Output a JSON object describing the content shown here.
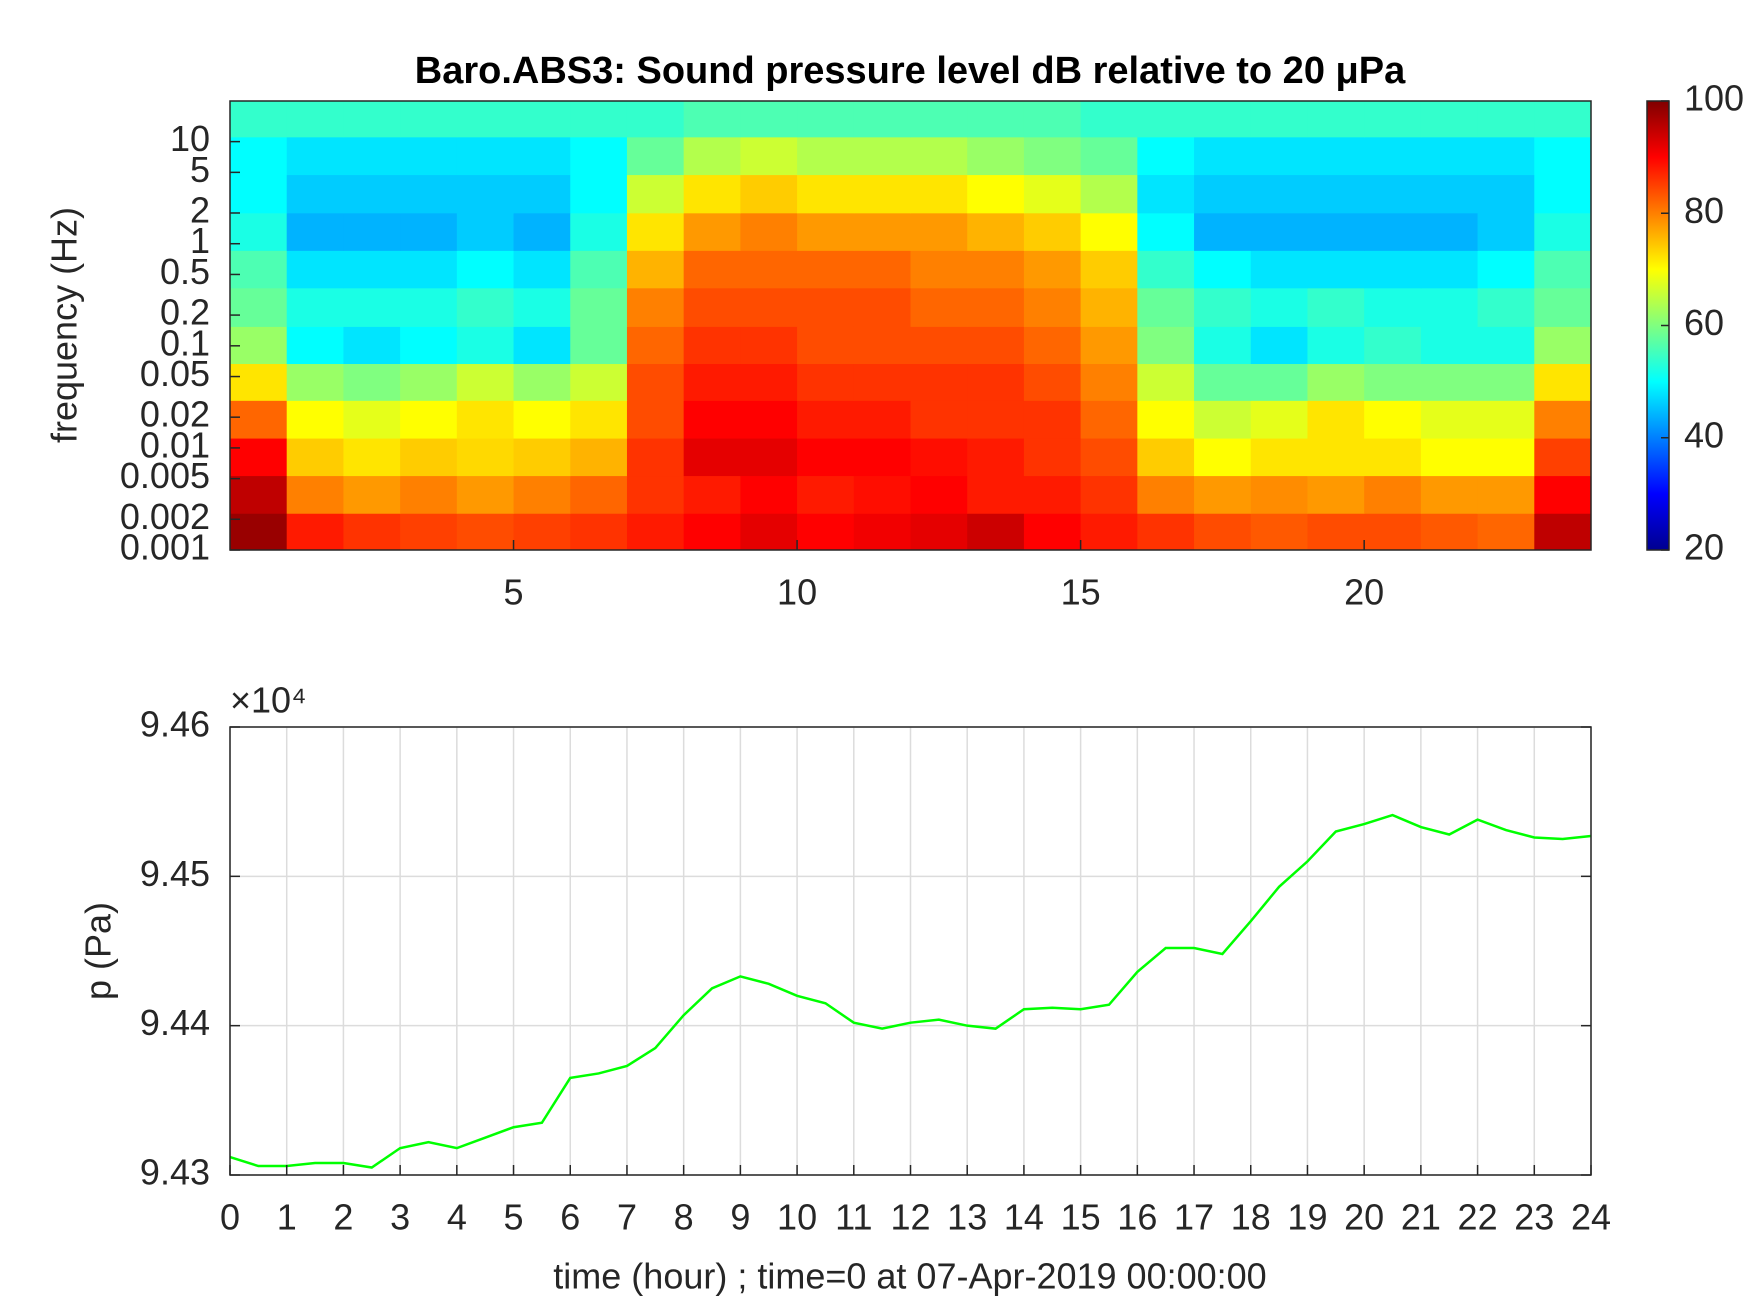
{
  "chart_data": [
    {
      "type": "heatmap",
      "title": "Baro.ABS3: Sound pressure level dB relative to 20 μPa",
      "y_label": "frequency (Hz)",
      "colormap": "jet",
      "x": [
        0.5,
        1.5,
        2.5,
        3.5,
        4.5,
        5.5,
        6.5,
        7.5,
        8.5,
        9.5,
        10.5,
        11.5,
        12.5,
        13.5,
        14.5,
        15.5,
        16.5,
        17.5,
        18.5,
        19.5,
        20.5,
        21.5,
        22.5,
        23.5
      ],
      "y": [
        0.0015,
        0.0035,
        0.0082,
        0.019,
        0.045,
        0.1,
        0.24,
        0.57,
        1.3,
        3.1,
        7.3,
        17
      ],
      "z": [
        [
          98,
          88,
          86,
          85,
          84,
          85,
          86,
          88,
          90,
          92,
          90,
          91,
          92,
          94,
          90,
          88,
          86,
          84,
          83,
          84,
          84,
          83,
          82,
          95
        ],
        [
          95,
          80,
          78,
          80,
          78,
          80,
          82,
          86,
          88,
          90,
          88,
          89,
          90,
          88,
          88,
          86,
          80,
          78,
          79,
          78,
          80,
          78,
          78,
          90
        ],
        [
          90,
          74,
          72,
          74,
          73,
          74,
          76,
          86,
          92,
          92,
          90,
          90,
          89,
          88,
          86,
          84,
          74,
          70,
          72,
          72,
          72,
          70,
          70,
          85
        ],
        [
          82,
          70,
          68,
          70,
          72,
          70,
          72,
          84,
          90,
          90,
          88,
          88,
          86,
          86,
          86,
          82,
          70,
          66,
          68,
          72,
          70,
          68,
          68,
          80
        ],
        [
          72,
          62,
          60,
          62,
          66,
          62,
          66,
          84,
          88,
          88,
          86,
          86,
          86,
          86,
          84,
          80,
          66,
          58,
          58,
          62,
          60,
          60,
          60,
          72
        ],
        [
          62,
          50,
          48,
          50,
          52,
          48,
          58,
          82,
          86,
          86,
          84,
          84,
          84,
          84,
          82,
          78,
          60,
          52,
          48,
          52,
          54,
          52,
          52,
          62
        ],
        [
          58,
          52,
          52,
          52,
          54,
          52,
          58,
          80,
          84,
          84,
          84,
          84,
          82,
          82,
          80,
          76,
          58,
          54,
          52,
          54,
          52,
          52,
          54,
          58
        ],
        [
          56,
          48,
          48,
          48,
          50,
          48,
          56,
          76,
          82,
          82,
          82,
          82,
          80,
          80,
          78,
          74,
          54,
          50,
          48,
          48,
          48,
          48,
          50,
          56
        ],
        [
          52,
          44,
          44,
          44,
          46,
          44,
          52,
          72,
          78,
          80,
          78,
          78,
          78,
          76,
          74,
          70,
          50,
          44,
          44,
          44,
          44,
          44,
          46,
          52
        ],
        [
          50,
          46,
          46,
          46,
          46,
          46,
          50,
          66,
          72,
          74,
          72,
          72,
          72,
          70,
          68,
          64,
          48,
          46,
          46,
          46,
          46,
          46,
          46,
          50
        ],
        [
          50,
          48,
          48,
          48,
          48,
          48,
          50,
          58,
          64,
          66,
          64,
          64,
          64,
          62,
          60,
          58,
          50,
          48,
          48,
          48,
          48,
          48,
          48,
          50
        ],
        [
          54,
          54,
          54,
          54,
          54,
          54,
          54,
          54,
          56,
          56,
          56,
          56,
          56,
          56,
          56,
          54,
          54,
          54,
          54,
          54,
          54,
          54,
          54,
          54
        ]
      ],
      "xlim": [
        0,
        24
      ],
      "xticks": [
        5,
        10,
        15,
        20
      ],
      "ylim": [
        0.001,
        25
      ],
      "y_log": true,
      "yticks": [
        0.001,
        0.002,
        0.005,
        0.01,
        0.02,
        0.05,
        0.1,
        0.2,
        0.5,
        1,
        2,
        5,
        10
      ],
      "clim": [
        20,
        100
      ],
      "cticks": [
        20,
        40,
        60,
        80,
        100
      ]
    },
    {
      "type": "line",
      "x_label": "time (hour) ; time=0 at 07-Apr-2019 00:00:00",
      "y_label": "p (Pa)",
      "y_exponent": "×10⁴",
      "x": [
        0,
        0.5,
        1,
        1.5,
        2,
        2.5,
        3,
        3.5,
        4,
        4.5,
        5,
        5.5,
        6,
        6.5,
        7,
        7.5,
        8,
        8.5,
        9,
        9.5,
        10,
        10.5,
        11,
        11.5,
        12,
        12.5,
        13,
        13.5,
        14,
        14.5,
        15,
        15.5,
        16,
        16.5,
        17,
        17.5,
        18,
        18.5,
        19,
        19.5,
        20,
        20.5,
        21,
        21.5,
        22,
        22.5,
        23,
        23.5,
        24
      ],
      "series": [
        {
          "name": "p",
          "color": "#00ff00",
          "values": [
            94312,
            94306,
            94306,
            94308,
            94308,
            94305,
            94318,
            94322,
            94318,
            94325,
            94332,
            94335,
            94365,
            94368,
            94373,
            94385,
            94407,
            94425,
            94433,
            94428,
            94420,
            94415,
            94402,
            94398,
            94402,
            94404,
            94400,
            94398,
            94411,
            94412,
            94411,
            94414,
            94436,
            94452,
            94452,
            94448,
            94470,
            94493,
            94510,
            94530,
            94535,
            94541,
            94533,
            94528,
            94538,
            94531,
            94526,
            94525,
            94527
          ]
        }
      ],
      "xlim": [
        0,
        24
      ],
      "xticks": [
        0,
        1,
        2,
        3,
        4,
        5,
        6,
        7,
        8,
        9,
        10,
        11,
        12,
        13,
        14,
        15,
        16,
        17,
        18,
        19,
        20,
        21,
        22,
        23,
        24
      ],
      "ylim": [
        94300,
        94600
      ],
      "yticks": [
        {
          "value": 94300,
          "label": "9.43"
        },
        {
          "value": 94400,
          "label": "9.44"
        },
        {
          "value": 94500,
          "label": "9.45"
        },
        {
          "value": 94600,
          "label": "9.46"
        }
      ],
      "grid": true
    }
  ]
}
